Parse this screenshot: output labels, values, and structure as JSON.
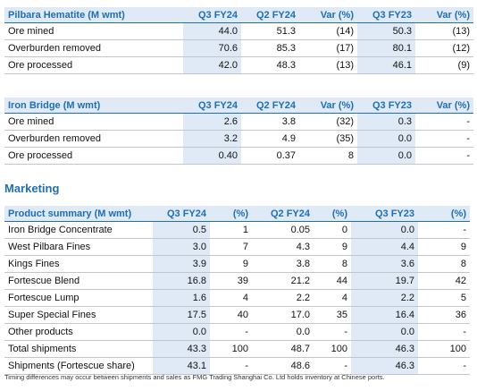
{
  "pilbara": {
    "headers": [
      "Pilbara Hematite (M wmt)",
      "Q3 FY24",
      "Q2 FY24",
      "Var (%)",
      "Q3 FY23",
      "Var (%)"
    ],
    "rows": [
      [
        "Ore mined",
        "44.0",
        "51.3",
        "(14)",
        "50.3",
        "(13)"
      ],
      [
        "Overburden removed",
        "70.6",
        "85.3",
        "(17)",
        "80.1",
        "(12)"
      ],
      [
        "Ore processed",
        "42.0",
        "48.3",
        "(13)",
        "46.1",
        "(9)"
      ]
    ]
  },
  "iron_bridge": {
    "headers": [
      "Iron Bridge (M wmt)",
      "Q3 FY24",
      "Q2 FY24",
      "Var (%)",
      "Q3 FY23",
      "Var (%)"
    ],
    "rows": [
      [
        "Ore mined",
        "2.6",
        "3.8",
        "(32)",
        "0.3",
        "-"
      ],
      [
        "Overburden removed",
        "3.2",
        "4.9",
        "(35)",
        "0.0",
        "-"
      ],
      [
        "Ore processed",
        "0.40",
        "0.37",
        "8",
        "0.0",
        "-"
      ]
    ]
  },
  "marketing": {
    "title": "Marketing",
    "headers": [
      "Product summary (M wmt)",
      "Q3 FY24",
      "(%)",
      "Q2 FY24",
      "(%)",
      "Q3 FY23",
      "(%)"
    ],
    "rows": [
      [
        "Iron Bridge Concentrate",
        "0.5",
        "1",
        "0.05",
        "0",
        "0.0",
        "-"
      ],
      [
        "West Pilbara Fines",
        "3.0",
        "7",
        "4.3",
        "9",
        "4.4",
        "9"
      ],
      [
        "Kings Fines",
        "3.9",
        "9",
        "3.8",
        "8",
        "3.6",
        "8"
      ],
      [
        "Fortescue Blend",
        "16.8",
        "39",
        "21.2",
        "44",
        "19.7",
        "42"
      ],
      [
        "Fortescue Lump",
        "1.6",
        "4",
        "2.2",
        "4",
        "2.2",
        "5"
      ],
      [
        "Super Special Fines",
        "17.5",
        "40",
        "17.0",
        "35",
        "16.4",
        "36"
      ],
      [
        "Other products",
        "0.0",
        "-",
        "0.0",
        "-",
        "0.0",
        "-"
      ],
      [
        "Total shipments",
        "43.3",
        "100",
        "48.7",
        "100",
        "46.3",
        "100"
      ],
      [
        "Shipments (Fortescue share)",
        "43.1",
        "-",
        "48.6",
        "-",
        "46.3",
        "-"
      ]
    ]
  },
  "footnote": "Timing differences may occur between shipments and sales as FMG Trading Shanghai Co. Ltd holds inventory at Chinese ports."
}
